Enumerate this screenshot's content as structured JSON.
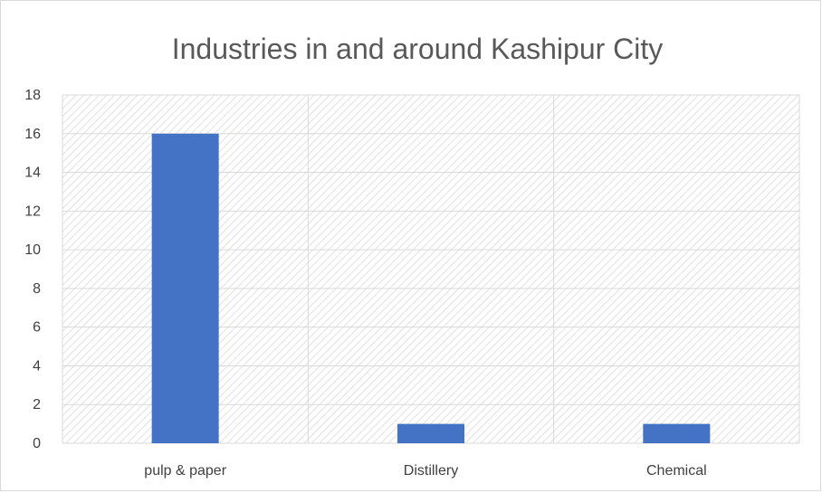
{
  "chart_data": {
    "type": "bar",
    "title": "Industries in and around Kashipur City",
    "categories": [
      "pulp & paper",
      "Distillery",
      "Chemical"
    ],
    "values": [
      16,
      1,
      1
    ],
    "ylim": [
      0,
      18
    ],
    "yticks": [
      0,
      2,
      4,
      6,
      8,
      10,
      12,
      14,
      16,
      18
    ],
    "xlabel": "",
    "ylabel": "",
    "grid": true,
    "legend": "none",
    "bar_color": "#4472C4",
    "plot_pattern": "diagonal-hatch",
    "gridline_color": "#d9d9d9"
  }
}
